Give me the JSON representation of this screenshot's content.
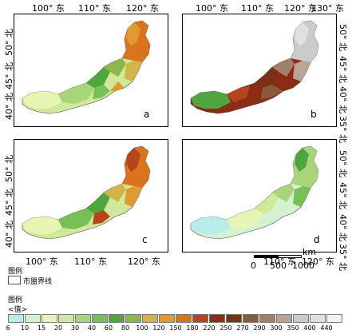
{
  "ticks": {
    "lon_100": "100° 东",
    "lon_110": "110° 东",
    "lon_120": "120° 东",
    "lon_130": "130° 东",
    "lat_35": "35° 北",
    "lat_40": "40° 北",
    "lat_45": "45° 北",
    "lat_50": "50° 北"
  },
  "panels": {
    "a": {
      "label": "a"
    },
    "b": {
      "label": "b"
    },
    "c": {
      "label": "c"
    },
    "d": {
      "label": "d"
    }
  },
  "boundary_legend": {
    "title": "图例",
    "item": "市盟界线"
  },
  "scale_bar": {
    "unit": "km",
    "labels": [
      "0",
      "500",
      "1000"
    ]
  },
  "value_legend": {
    "title": "图例",
    "subtitle": "<值>",
    "values": [
      "6",
      "10",
      "15",
      "20",
      "30",
      "40",
      "60",
      "80",
      "100",
      "120",
      "150",
      "180",
      "220",
      "250",
      "270",
      "290",
      "300",
      "350",
      "400",
      "440"
    ],
    "colors": [
      "#b9ece8",
      "#d4f2cf",
      "#e6f5b4",
      "#cfe89a",
      "#a9d57a",
      "#79bf58",
      "#4fa63f",
      "#8fb64a",
      "#d4b44a",
      "#e09a2f",
      "#d9731d",
      "#b5461c",
      "#8b2d12",
      "#7a3216",
      "#8a5a3e",
      "#a1806a",
      "#b9a596",
      "#cbcbcb",
      "#e0e0e0",
      "#f3f3f3"
    ]
  }
}
